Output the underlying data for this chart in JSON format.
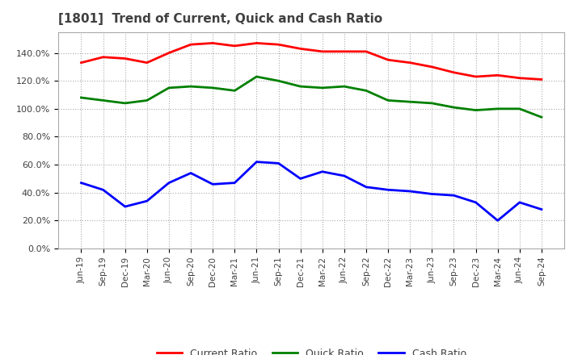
{
  "title": "[1801]  Trend of Current, Quick and Cash Ratio",
  "title_color": "#404040",
  "background_color": "#ffffff",
  "plot_bg_color": "#ffffff",
  "grid_color": "#aaaaaa",
  "x_labels": [
    "Jun-19",
    "Sep-19",
    "Dec-19",
    "Mar-20",
    "Jun-20",
    "Sep-20",
    "Dec-20",
    "Mar-21",
    "Jun-21",
    "Sep-21",
    "Dec-21",
    "Mar-22",
    "Jun-22",
    "Sep-22",
    "Dec-22",
    "Mar-23",
    "Jun-23",
    "Sep-23",
    "Dec-23",
    "Mar-24",
    "Jun-24",
    "Sep-24"
  ],
  "current_ratio": [
    133,
    137,
    136,
    133,
    140,
    146,
    147,
    145,
    147,
    146,
    143,
    141,
    141,
    141,
    135,
    133,
    130,
    126,
    123,
    124,
    122,
    121
  ],
  "quick_ratio": [
    108,
    106,
    104,
    106,
    115,
    116,
    115,
    113,
    123,
    120,
    116,
    115,
    116,
    113,
    106,
    105,
    104,
    101,
    99,
    100,
    100,
    94
  ],
  "cash_ratio": [
    47,
    42,
    30,
    34,
    47,
    54,
    46,
    47,
    62,
    61,
    50,
    55,
    52,
    44,
    42,
    41,
    39,
    38,
    33,
    20,
    33,
    28
  ],
  "current_color": "#ff0000",
  "quick_color": "#008000",
  "cash_color": "#0000ff",
  "ylim": [
    0,
    155
  ],
  "yticks": [
    0,
    20,
    40,
    60,
    80,
    100,
    120,
    140
  ],
  "legend_labels": [
    "Current Ratio",
    "Quick Ratio",
    "Cash Ratio"
  ]
}
